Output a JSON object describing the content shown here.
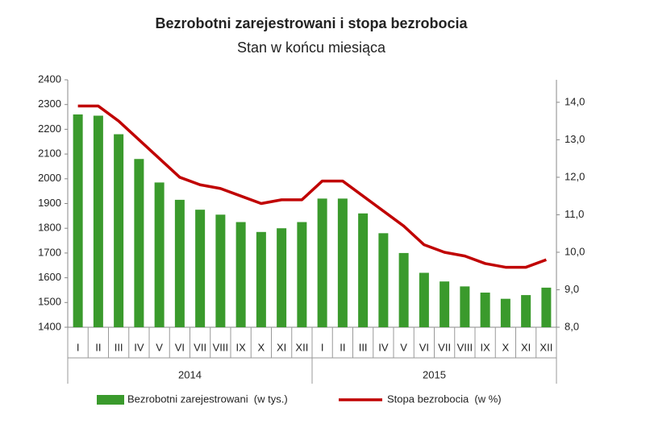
{
  "chart_data": {
    "type": "bar_line",
    "title": "Bezrobotni zarejestrowani i stopa bezrobocia",
    "subtitle": "Stan w końcu miesiąca",
    "categories": [
      "I",
      "II",
      "III",
      "IV",
      "V",
      "VI",
      "VII",
      "VIII",
      "IX",
      "X",
      "XI",
      "XII",
      "I",
      "II",
      "III",
      "IV",
      "V",
      "VI",
      "VII",
      "VIII",
      "IX",
      "X",
      "XI",
      "XII"
    ],
    "category_groups": [
      "2014",
      "2015"
    ],
    "series": [
      {
        "name": "Bezrobotni zarejestrowani  (w tys.)",
        "type": "bar",
        "color": "#3a9a2c",
        "values": [
          2260,
          2255,
          2180,
          2080,
          1985,
          1915,
          1875,
          1855,
          1825,
          1785,
          1800,
          1825,
          1920,
          1920,
          1860,
          1780,
          1700,
          1620,
          1585,
          1565,
          1540,
          1515,
          1530,
          1560
        ]
      },
      {
        "name": "Stopa bezrobocia  (w %)",
        "type": "line",
        "axis": "y2",
        "color": "#c00000",
        "values": [
          13.9,
          13.9,
          13.5,
          13.0,
          12.5,
          12.0,
          11.8,
          11.7,
          11.5,
          11.3,
          11.4,
          11.4,
          11.9,
          11.9,
          11.5,
          11.1,
          10.7,
          10.2,
          10.0,
          9.9,
          9.7,
          9.6,
          9.6,
          9.8
        ]
      }
    ],
    "ylim": [
      1400,
      2400
    ],
    "yticks": [
      1400,
      1500,
      1600,
      1700,
      1800,
      1900,
      2000,
      2100,
      2200,
      2300,
      2400
    ],
    "y2lim": [
      8,
      14.6
    ],
    "y2ticks": [
      {
        "value": 8,
        "label": "8,0"
      },
      {
        "value": 9,
        "label": "9,0"
      },
      {
        "value": 10,
        "label": "10,0"
      },
      {
        "value": 11,
        "label": "11,0"
      },
      {
        "value": 12,
        "label": "12,0"
      },
      {
        "value": 13,
        "label": "13,0"
      },
      {
        "value": 14,
        "label": "14,0"
      }
    ],
    "grid": false
  }
}
